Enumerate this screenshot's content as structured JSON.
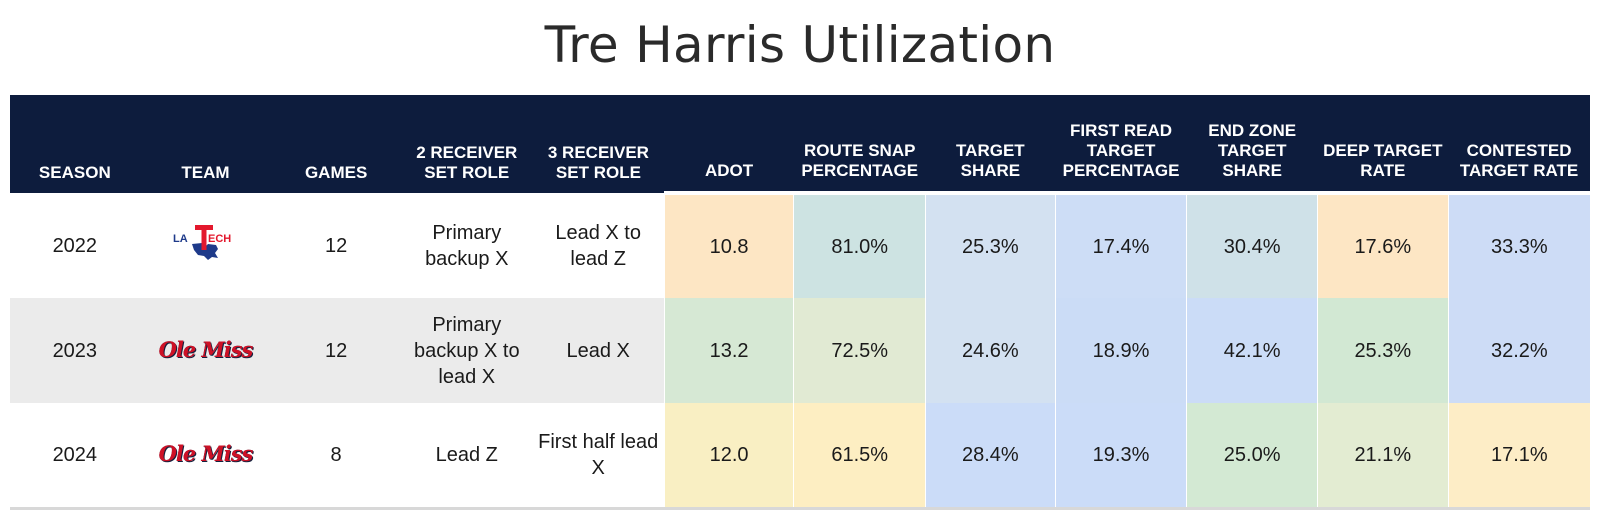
{
  "title": "Tre Harris Utilization",
  "chart_data": {
    "type": "table",
    "title": "Tre Harris Utilization",
    "columns": [
      "SEASON",
      "TEAM",
      "GAMES",
      "2 RECEIVER SET ROLE",
      "3 RECEIVER SET ROLE",
      "ADOT",
      "ROUTE SNAP PERCENTAGE",
      "TARGET SHARE",
      "FIRST READ TARGET PERCENTAGE",
      "END ZONE TARGET SHARE",
      "DEEP TARGET RATE",
      "CONTESTED TARGET RATE"
    ],
    "rows": [
      {
        "season": "2022",
        "team_logo": "la-tech-logo",
        "team_logo_text": [
          "LA",
          "T",
          "ECH"
        ],
        "games": "12",
        "role2": "Primary backup X",
        "role3": "Lead X to lead Z",
        "metrics": [
          "10.8",
          "81.0%",
          "25.3%",
          "17.4%",
          "30.4%",
          "17.6%",
          "33.3%"
        ],
        "colors": [
          "#fde6c4",
          "#cde3e2",
          "#d3e1f1",
          "#cdddf6",
          "#cfe1e8",
          "#fde6c4",
          "#cddcf6"
        ]
      },
      {
        "season": "2023",
        "team_logo": "ole-miss-logo",
        "team_logo_text": "Ole Miss",
        "games": "12",
        "role2": "Primary backup X to lead X",
        "role3": "Lead X",
        "metrics": [
          "13.2",
          "72.5%",
          "24.6%",
          "18.9%",
          "42.1%",
          "25.3%",
          "32.2%"
        ],
        "colors": [
          "#d6e8d4",
          "#e1ead3",
          "#d3e1f1",
          "#cbdcf6",
          "#cbdcf7",
          "#d2e8d3",
          "#cddcf6"
        ]
      },
      {
        "season": "2024",
        "team_logo": "ole-miss-logo",
        "team_logo_text": "Ole Miss",
        "games": "8",
        "role2": "Lead Z",
        "role3": "First half lead X",
        "metrics": [
          "12.0",
          "61.5%",
          "28.4%",
          "19.3%",
          "25.0%",
          "21.1%",
          "17.1%"
        ],
        "colors": [
          "#f9efc3",
          "#fdeec2",
          "#cbdcf8",
          "#cbdcf8",
          "#d3e9d3",
          "#e3ecd2",
          "#fdedc6"
        ]
      }
    ]
  }
}
